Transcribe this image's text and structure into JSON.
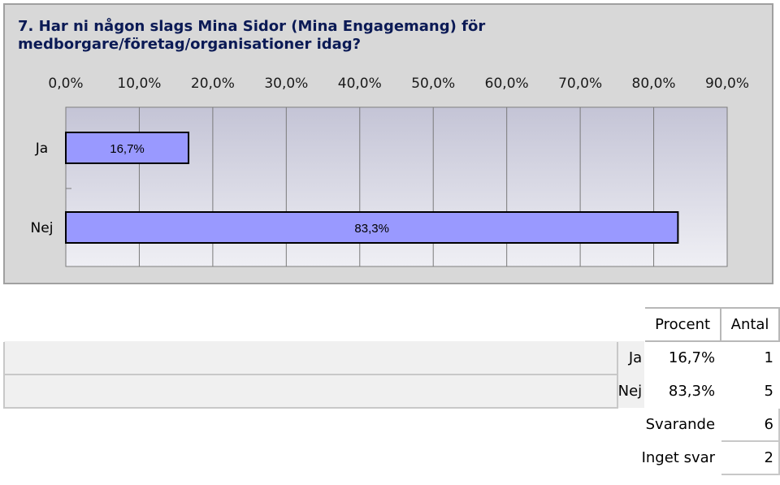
{
  "question": {
    "title_line1": "7. Har ni någon slags Mina Sidor (Mina Engagemang) för",
    "title_line2": "medborgare/företag/organisationer idag?"
  },
  "colors": {
    "bar_fill": "#9999ff",
    "plot_bg": "#cfcfdf",
    "panel_bg": "#d8d8d8",
    "title_color": "#0b1a55"
  },
  "chart_data": {
    "type": "bar",
    "orientation": "horizontal",
    "title": "7. Har ni någon slags Mina Sidor (Mina Engagemang) för medborgare/företag/organisationer idag?",
    "categories": [
      "Ja",
      "Nej"
    ],
    "values": [
      16.7,
      83.3
    ],
    "value_labels": [
      "16,7%",
      "83,3%"
    ],
    "xlim": [
      0,
      90
    ],
    "x_ticks": [
      "0,0%",
      "10,0%",
      "20,0%",
      "30,0%",
      "40,0%",
      "50,0%",
      "60,0%",
      "70,0%",
      "80,0%",
      "90,0%"
    ],
    "grid": true,
    "x_axis_position": "top"
  },
  "table": {
    "headers": [
      "Procent",
      "Antal"
    ],
    "rows": [
      {
        "label": "Ja",
        "percent": "16,7%",
        "count": "1"
      },
      {
        "label": "Nej",
        "percent": "83,3%",
        "count": "5"
      }
    ],
    "summary": [
      {
        "label": "Svarande",
        "count": "6"
      },
      {
        "label": "Inget svar",
        "count": "2"
      }
    ]
  }
}
